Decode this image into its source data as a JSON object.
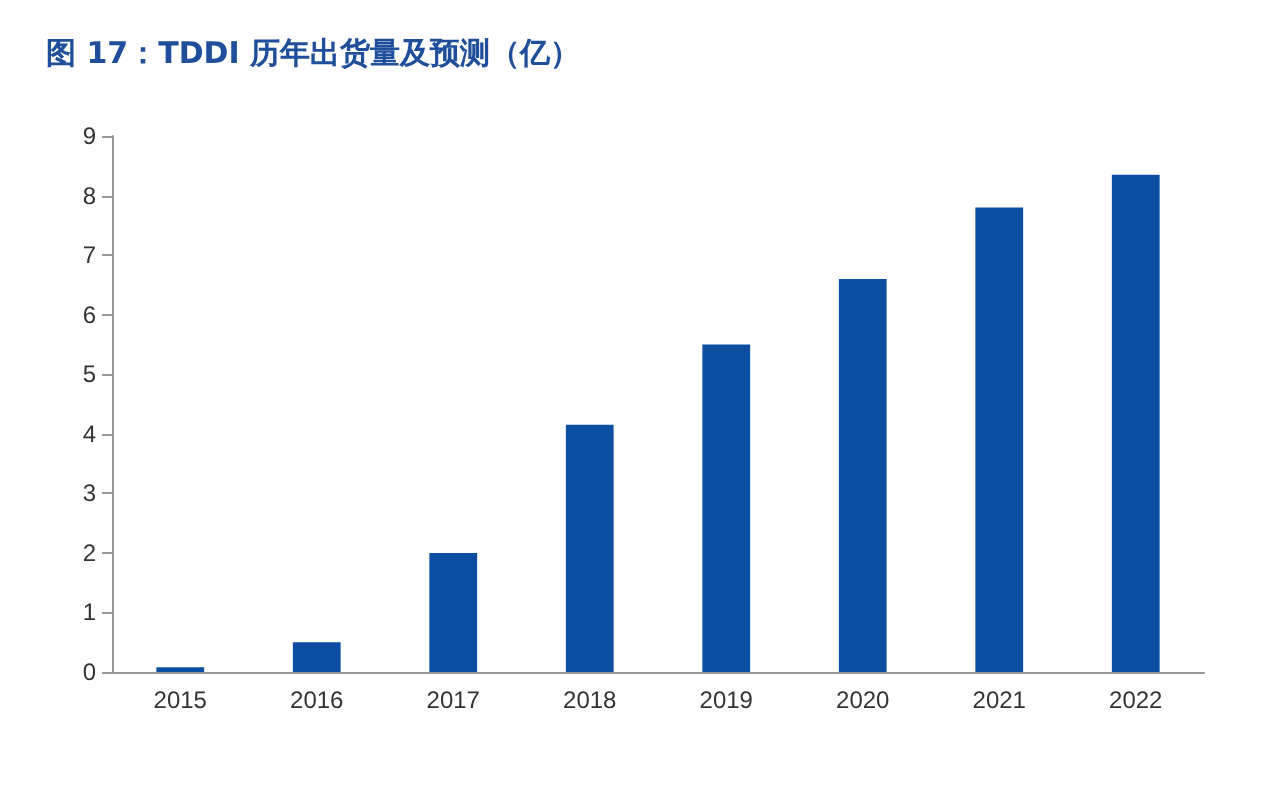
{
  "chart_data": {
    "type": "bar",
    "title": "图 17：TDDI 历年出货量及预测（亿）",
    "categories": [
      "2015",
      "2016",
      "2017",
      "2018",
      "2019",
      "2020",
      "2021",
      "2022"
    ],
    "values": [
      0.08,
      0.5,
      2.0,
      4.15,
      5.5,
      6.6,
      7.8,
      8.35
    ],
    "color": "#0b4ea2",
    "ylim": [
      0,
      9
    ],
    "yticks": [
      0,
      1,
      2,
      3,
      4,
      5,
      6,
      7,
      8,
      9
    ],
    "grid": false
  }
}
